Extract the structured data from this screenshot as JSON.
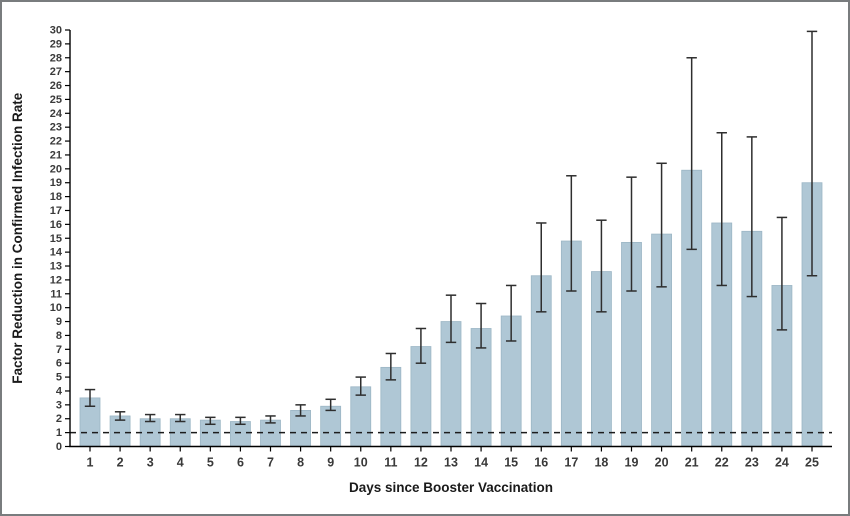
{
  "figure": {
    "background": "#ffffff",
    "border_color": "#797c7e"
  },
  "chart_data": {
    "type": "bar",
    "title": "",
    "xlabel": "Days since Booster Vaccination",
    "ylabel": "Factor Reduction in Confirmed Infection Rate",
    "categories": [
      1,
      2,
      3,
      4,
      5,
      6,
      7,
      8,
      9,
      10,
      11,
      12,
      13,
      14,
      15,
      16,
      17,
      18,
      19,
      20,
      21,
      22,
      23,
      24,
      25
    ],
    "values": [
      3.5,
      2.2,
      2.0,
      2.0,
      1.9,
      1.8,
      1.9,
      2.6,
      2.9,
      4.3,
      5.7,
      7.2,
      9.0,
      8.5,
      9.4,
      12.3,
      14.8,
      12.6,
      14.7,
      15.3,
      19.9,
      16.1,
      15.5,
      11.6,
      19.0
    ],
    "error_low": [
      2.9,
      1.9,
      1.8,
      1.8,
      1.6,
      1.6,
      1.7,
      2.2,
      2.6,
      3.7,
      4.8,
      6.0,
      7.5,
      7.1,
      7.6,
      9.7,
      11.2,
      9.7,
      11.2,
      11.5,
      14.2,
      11.6,
      10.8,
      8.4,
      12.3
    ],
    "error_high": [
      4.1,
      2.5,
      2.3,
      2.3,
      2.1,
      2.1,
      2.2,
      3.0,
      3.4,
      5.0,
      6.7,
      8.5,
      10.9,
      10.3,
      11.6,
      16.1,
      19.5,
      16.3,
      19.4,
      20.4,
      28.0,
      22.6,
      22.3,
      16.5,
      29.9
    ],
    "reference_line_y": 1,
    "ylim": [
      0,
      30
    ],
    "ytick_step": 1,
    "grid": false,
    "legend_position": "none",
    "bar_color": "#afc7d5",
    "bar_edge_color": "#9cb6c5",
    "error_bar_color": "#2e2e2e",
    "axis_color": "#000000",
    "reference_line_color": "#1c1c1c"
  }
}
